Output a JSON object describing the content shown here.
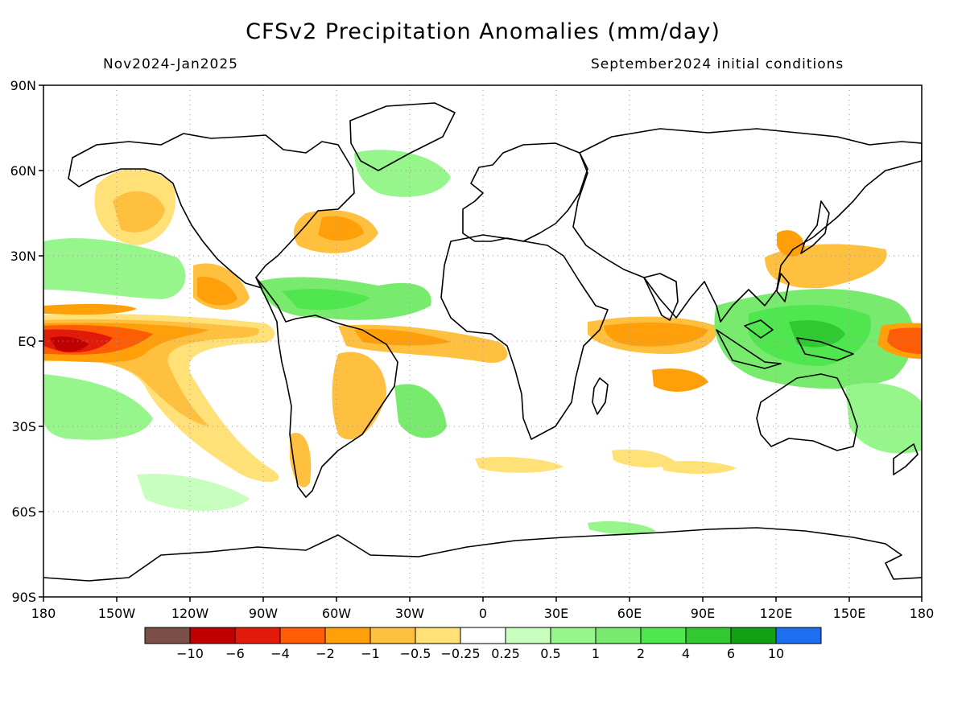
{
  "title": "CFSv2 Precipitation Anomalies (mm/day)",
  "period": "Nov2024-Jan2025",
  "init": "September2024 initial conditions",
  "lat_ticks": [
    "90N",
    "60N",
    "30N",
    "EQ",
    "30S",
    "60S",
    "90S"
  ],
  "lon_ticks": [
    "180",
    "150W",
    "120W",
    "90W",
    "60W",
    "30W",
    "0",
    "30E",
    "60E",
    "90E",
    "120E",
    "150E",
    "180"
  ],
  "colorbar": {
    "colors": [
      "#7a4f46",
      "#c00000",
      "#e21a0a",
      "#ff5c06",
      "#ffa00a",
      "#ffc040",
      "#ffe178",
      "#ffffff",
      "#c8ffbe",
      "#96f68c",
      "#78eb6e",
      "#50e650",
      "#32c832",
      "#14a014",
      "#1e6ef0"
    ],
    "labels": [
      "−10",
      "−6",
      "−4",
      "−2",
      "−1",
      "−0.5",
      "−0.25",
      "0.25",
      "0.5",
      "1",
      "2",
      "4",
      "6",
      "10"
    ]
  }
}
